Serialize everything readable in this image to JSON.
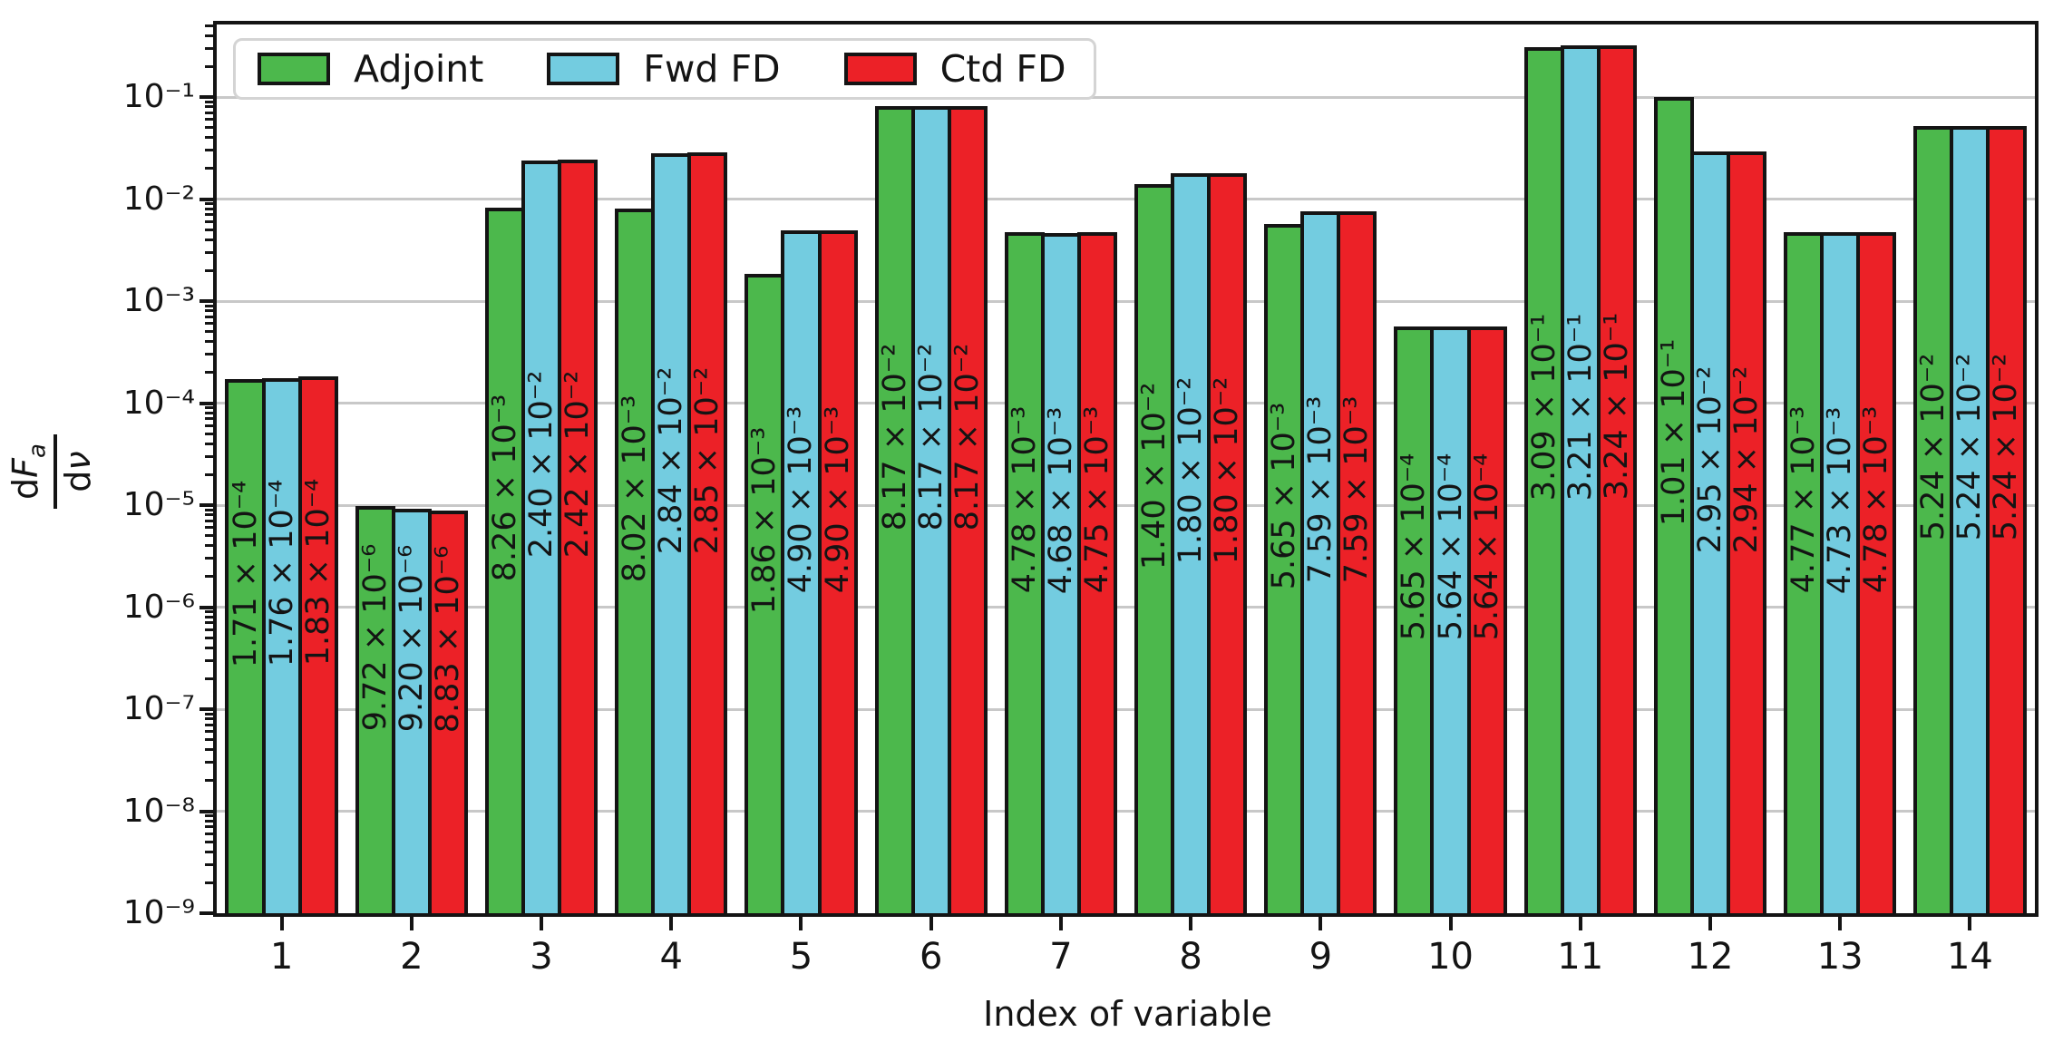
{
  "chart_data": {
    "type": "bar",
    "title": "",
    "xlabel": "Index of variable",
    "ylabel": {
      "numerator_d": "d",
      "numerator_var": "F",
      "numerator_sub": "a",
      "denominator_d": "d",
      "denominator_var": "ν"
    },
    "categories": [
      "1",
      "2",
      "3",
      "4",
      "5",
      "6",
      "7",
      "8",
      "9",
      "10",
      "11",
      "12",
      "13",
      "14"
    ],
    "yscale": "log",
    "ylim": [
      1e-09,
      0.514
    ],
    "ytick_exponents": [
      -1,
      -2,
      -3,
      -4,
      -5,
      -6,
      -7,
      -8,
      -9
    ],
    "grid": true,
    "legend_position": "upper left",
    "bar_edge_color": "#141414",
    "grid_color": "#c8c8c8",
    "series": [
      {
        "name": "Adjoint",
        "color": "#4CB84C",
        "values": [
          0.000171,
          9.72e-06,
          0.00826,
          0.00802,
          0.00186,
          0.0817,
          0.00478,
          0.014,
          0.00565,
          0.000565,
          0.309,
          0.101,
          0.00477,
          0.0524
        ],
        "labels": [
          "1.71 × 10^-4",
          "9.72 × 10^-6",
          "8.26 × 10^-3",
          "8.02 × 10^-3",
          "1.86 × 10^-3",
          "8.17 × 10^-2",
          "4.78 × 10^-3",
          "1.40 × 10^-2",
          "5.65 × 10^-3",
          "5.65 × 10^-4",
          "3.09 × 10^-1",
          "1.01 × 10^-1",
          "4.77 × 10^-3",
          "5.24 × 10^-2"
        ]
      },
      {
        "name": "Fwd FD",
        "color": "#73CCE0",
        "values": [
          0.000176,
          9.2e-06,
          0.024,
          0.0284,
          0.0049,
          0.0817,
          0.00468,
          0.018,
          0.00759,
          0.000564,
          0.321,
          0.0295,
          0.00473,
          0.0524
        ],
        "labels": [
          "1.76 × 10^-4",
          "9.20 × 10^-6",
          "2.40 × 10^-2",
          "2.84 × 10^-2",
          "4.90 × 10^-3",
          "8.17 × 10^-2",
          "4.68 × 10^-3",
          "1.80 × 10^-2",
          "7.59 × 10^-3",
          "5.64 × 10^-4",
          "3.21 × 10^-1",
          "2.95 × 10^-2",
          "4.73 × 10^-3",
          "5.24 × 10^-2"
        ]
      },
      {
        "name": "Ctd FD",
        "color": "#EC2127",
        "values": [
          0.000183,
          8.83e-06,
          0.0242,
          0.0285,
          0.0049,
          0.0817,
          0.00475,
          0.018,
          0.00759,
          0.000564,
          0.324,
          0.0294,
          0.00478,
          0.0524
        ],
        "labels": [
          "1.83 × 10^-4",
          "8.83 × 10^-6",
          "2.42 × 10^-2",
          "2.85 × 10^-2",
          "4.90 × 10^-3",
          "8.17 × 10^-2",
          "4.75 × 10^-3",
          "1.80 × 10^-2",
          "7.59 × 10^-3",
          "5.64 × 10^-4",
          "3.24 × 10^-1",
          "2.94 × 10^-2",
          "4.78 × 10^-3",
          "5.24 × 10^-2"
        ]
      }
    ]
  }
}
